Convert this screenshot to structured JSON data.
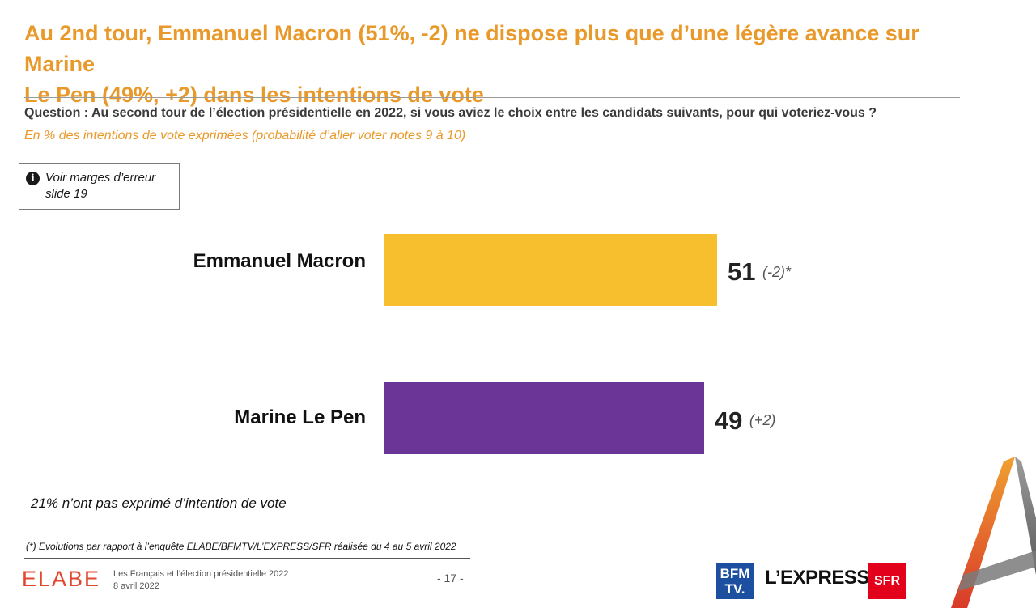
{
  "header": {
    "title_line1": "Au 2nd tour, Emmanuel Macron (51%, -2) ne dispose plus que d’une légère avance sur Marine",
    "title_line2": "Le Pen (49%, +2) dans les intentions de vote",
    "question": "Question : Au second tour de l’élection présidentielle en 2022, si vous aviez le choix entre les candidats suivants, pour qui voteriez-vous ?",
    "subtitle": "En % des intentions de vote exprimées (probabilité d’aller voter notes 9 à 10)"
  },
  "info_box": {
    "icon": "info-icon",
    "line1": "Voir marges d’erreur",
    "line2": "slide 19"
  },
  "chart_data": {
    "type": "bar",
    "orientation": "horizontal",
    "categories": [
      "Emmanuel Macron",
      "Marine Le Pen"
    ],
    "values": [
      51,
      49
    ],
    "value_labels": [
      "51",
      "49"
    ],
    "evolutions": [
      "(-2)*",
      "(+2)"
    ],
    "colors": [
      "#f7bf2e",
      "#6b3597"
    ]
  },
  "notes": {
    "abstention": "21% n’ont pas exprimé d’intention de vote",
    "footnote": "(*) Evolutions par rapport à l’enquête ELABE/BFMTV/L’EXPRESS/SFR réalisée du 4 au 5 avril 2022"
  },
  "footer": {
    "brand": "ELABE",
    "study": "Les Français et l’élection présidentielle 2022",
    "date": "8 avril 2022",
    "page": "- 17 -",
    "partner1_line1": "BFM",
    "partner1_line2": "TV.",
    "partner2": "L’EXPRESS",
    "partner3": "SFR"
  },
  "colors": {
    "accent": "#e9992a",
    "brand": "#e0472e"
  }
}
